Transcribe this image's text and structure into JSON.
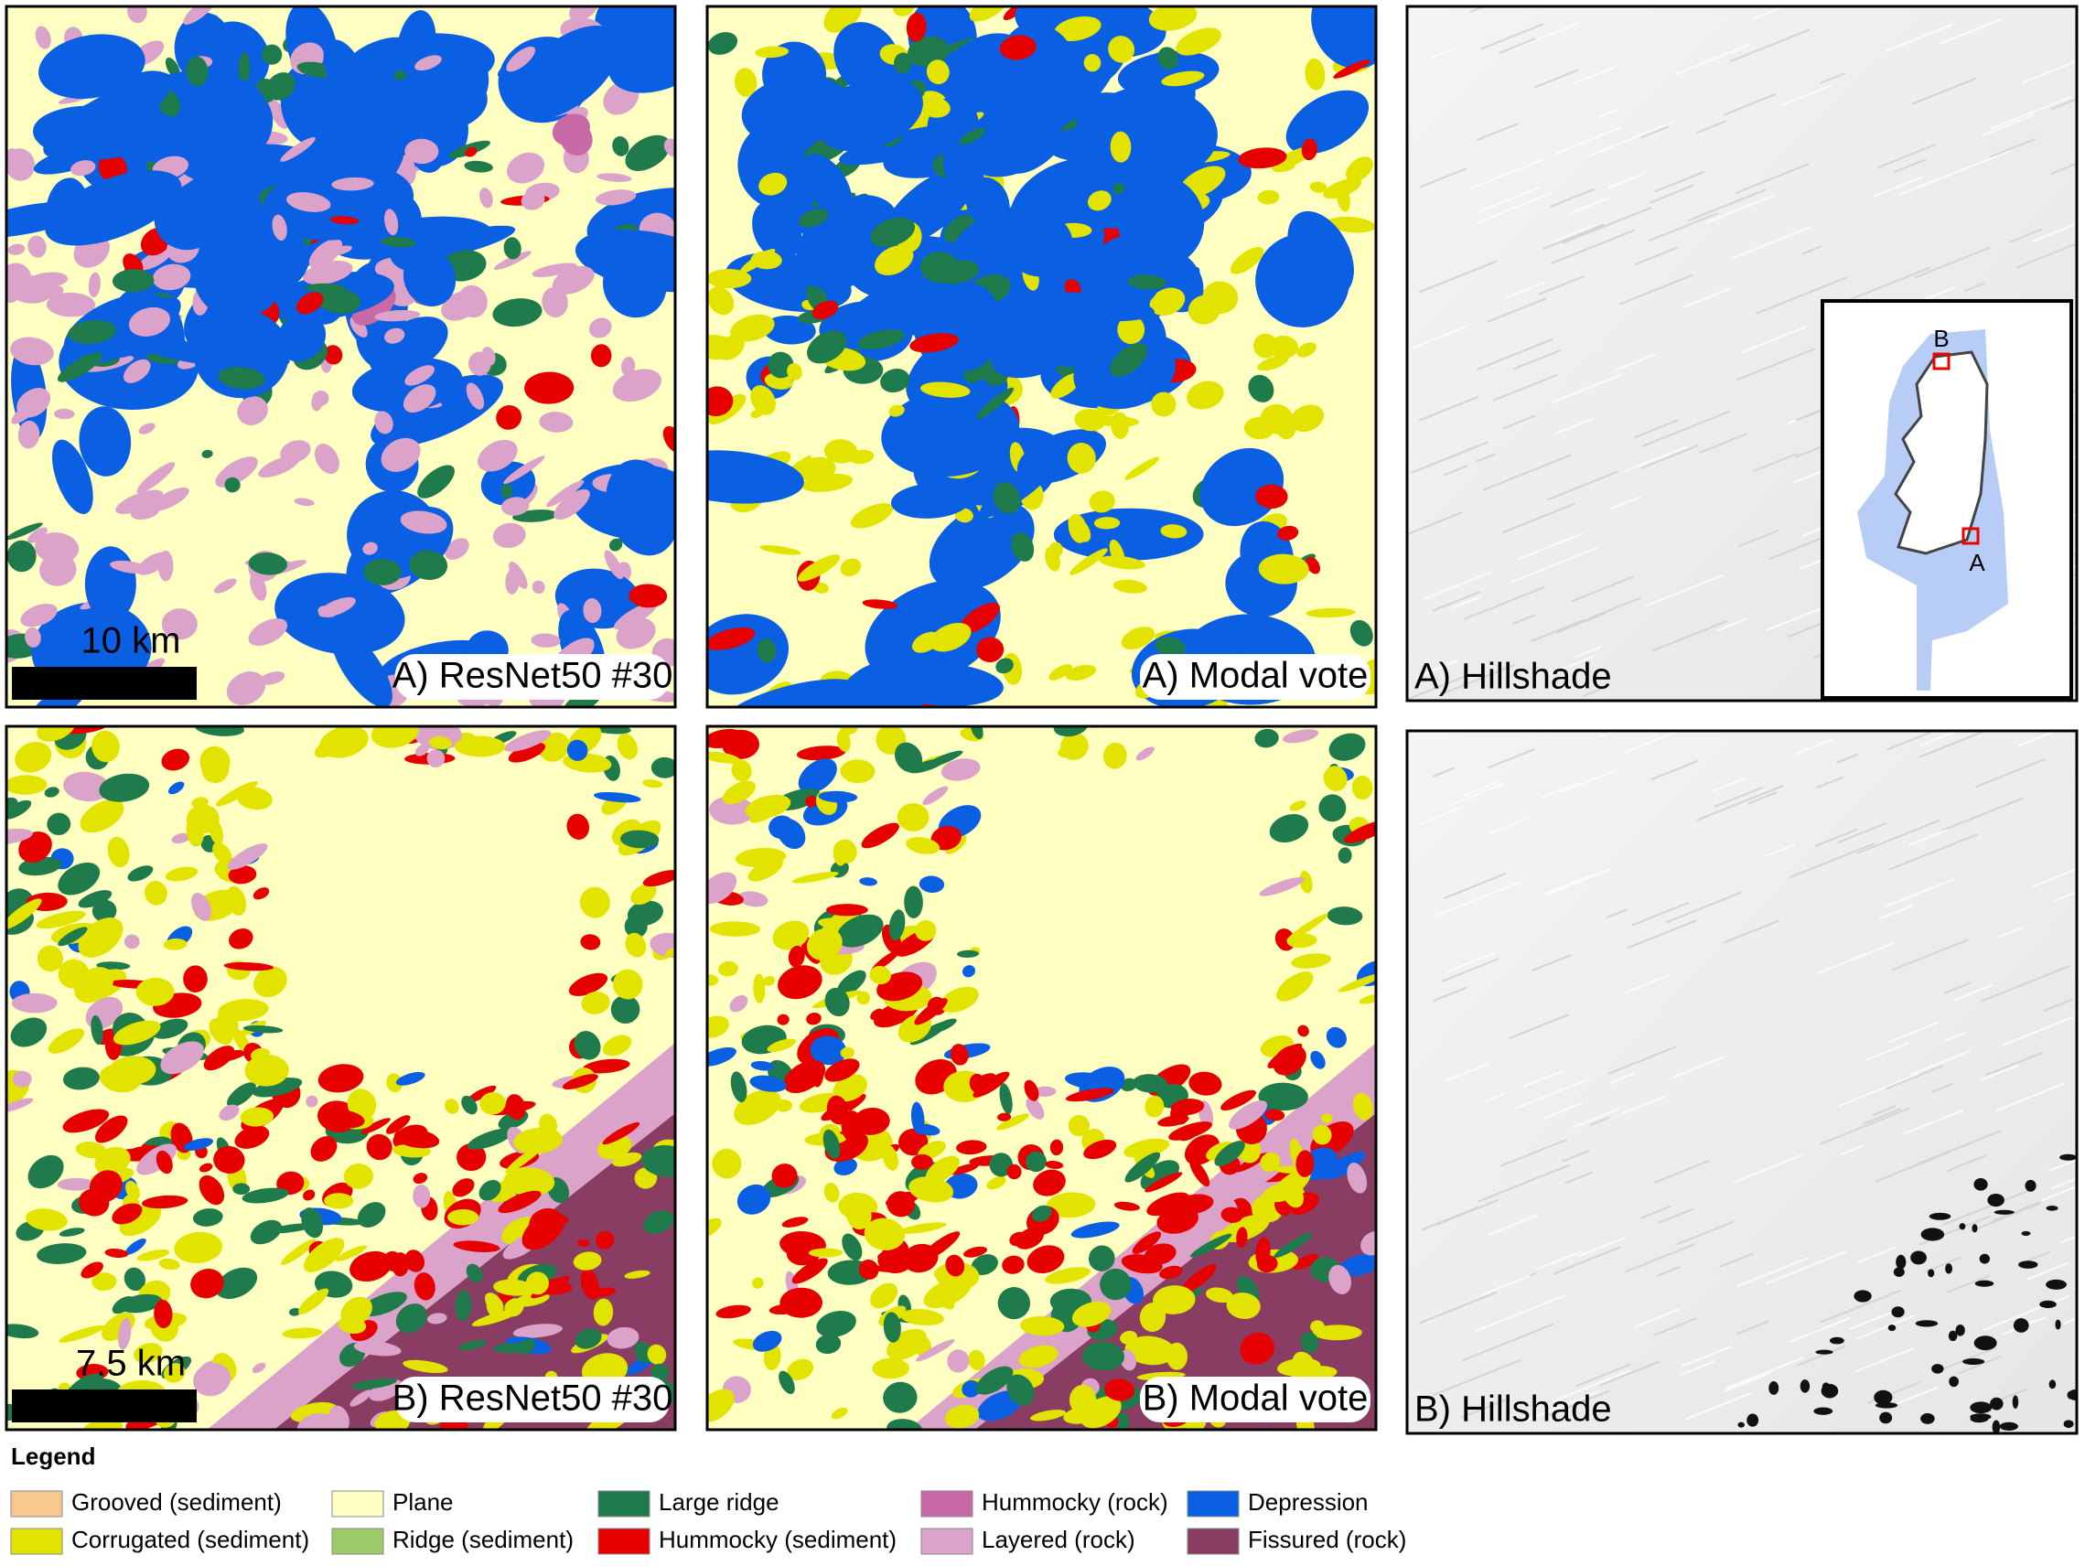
{
  "panels": [
    {
      "label": "A) ResNet50 #30",
      "scale_bar": "10 km"
    },
    {
      "label": "A) Modal vote"
    },
    {
      "label": "A) Hillshade",
      "inset_labels": [
        "B",
        "A"
      ]
    },
    {
      "label": "B) ResNet50 #30",
      "scale_bar": "7.5 km"
    },
    {
      "label": "B) Modal vote"
    },
    {
      "label": "B) Hillshade"
    }
  ],
  "legend": {
    "title": "Legend",
    "items": [
      {
        "label": "Grooved (sediment)",
        "color": "#f7c98c"
      },
      {
        "label": "Corrugated (sediment)",
        "color": "#e3e300"
      },
      {
        "label": "Plane",
        "color": "#ffffc2"
      },
      {
        "label": "Ridge (sediment)",
        "color": "#9ccc6a"
      },
      {
        "label": "Large ridge",
        "color": "#1f7a4c"
      },
      {
        "label": "Hummocky (sediment)",
        "color": "#e60000"
      },
      {
        "label": "Hummocky (rock)",
        "color": "#c96aa8"
      },
      {
        "label": "Layered (rock)",
        "color": "#dba2ca"
      },
      {
        "label": "Depression",
        "color": "#0a5fe3"
      },
      {
        "label": "Fissured (rock)",
        "color": "#8a3d63"
      }
    ]
  }
}
